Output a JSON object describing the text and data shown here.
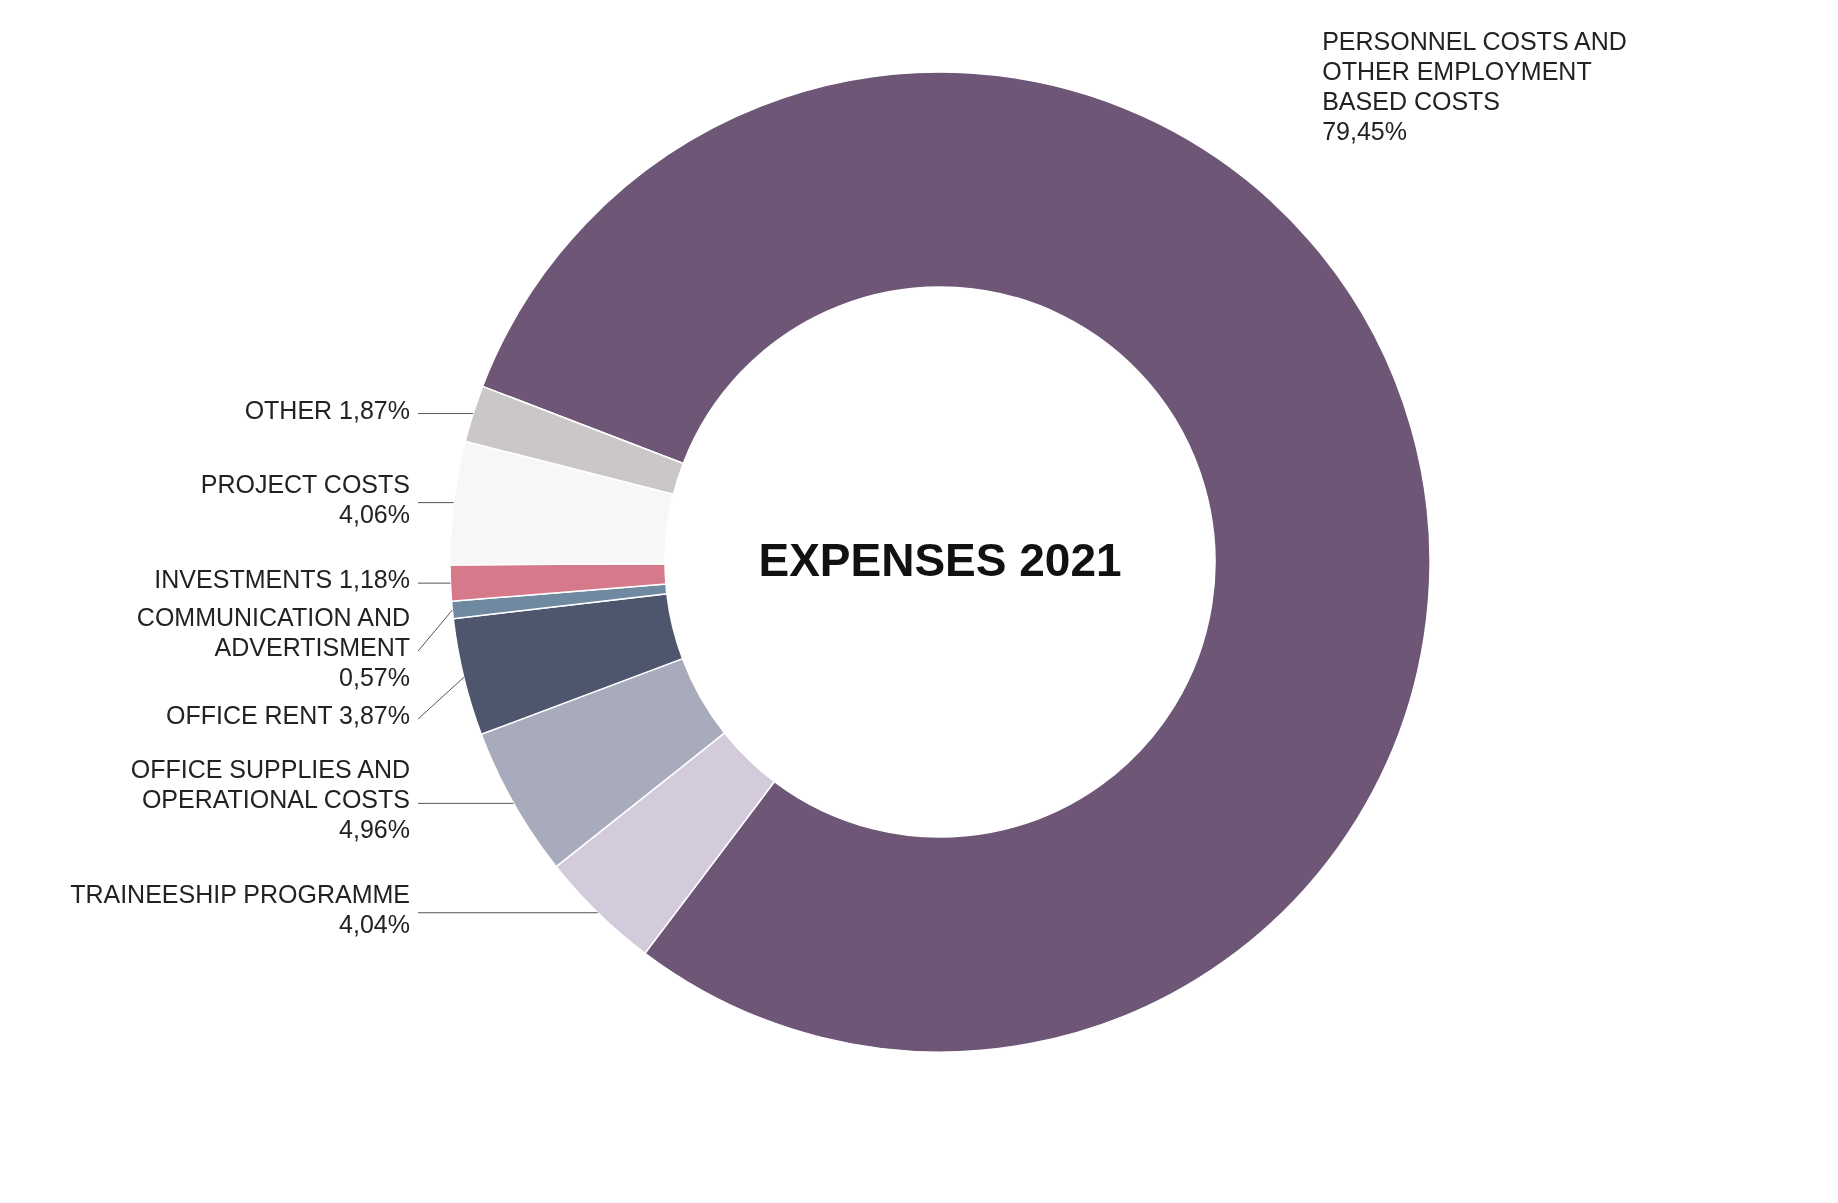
{
  "chart_data": {
    "type": "donut",
    "title": "EXPENSES 2021",
    "categories": [
      "PERSONNEL COSTS AND OTHER EMPLOYMENT BASED COSTS",
      "TRAINEESHIP PROGRAMME",
      "OFFICE SUPPLIES AND OPERATIONAL COSTS",
      "OFFICE RENT",
      "COMMUNICATION AND ADVERTISMENT",
      "INVESTMENTS",
      "PROJECT COSTS",
      "OTHER"
    ],
    "values": [
      79.45,
      4.04,
      4.96,
      3.87,
      0.57,
      1.18,
      4.06,
      1.87
    ],
    "value_labels": [
      "79,45%",
      "4,04%",
      "4,96%",
      "3,87%",
      "0,57%",
      "1,18%",
      "4,06%",
      "1,87%"
    ],
    "colors": [
      "#6e5677",
      "#d3cbdc",
      "#a8abbb",
      "#4d566d",
      "#6f89a0",
      "#d6798a",
      "#f7f7f7",
      "#cbc7c8"
    ]
  }
}
